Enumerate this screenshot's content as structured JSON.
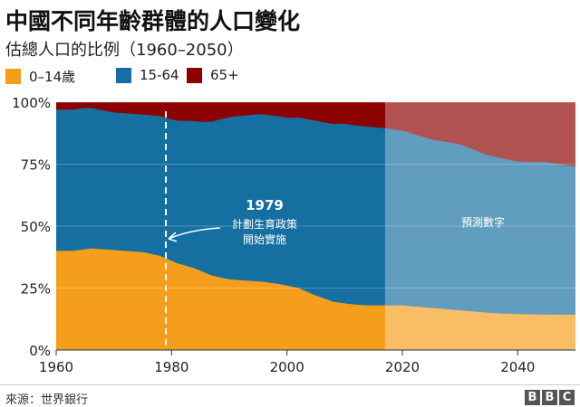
{
  "title": "中國不同年齡群體的人口變化",
  "subtitle": "估總人口的比例（1960–2050）",
  "legend": [
    {
      "label": "0–14歲",
      "color": "#f59e1c"
    },
    {
      "label": "15-64",
      "color": "#156fa0"
    },
    {
      "label": "65+",
      "color": "#8c0000"
    }
  ],
  "source": "來源：世界銀行",
  "logo": [
    "B",
    "B",
    "C"
  ],
  "chart_data": {
    "type": "area",
    "stacked": true,
    "title": "中國不同年齡群體的人口變化",
    "subtitle": "估總人口的比例（1960–2050）",
    "xlim": [
      1960,
      2050
    ],
    "ylim": [
      0,
      100
    ],
    "x_ticks": [
      "1960",
      "1980",
      "2000",
      "2020",
      "2040"
    ],
    "y_ticks": [
      "0%",
      "25%",
      "50%",
      "75%",
      "100%"
    ],
    "grid": true,
    "legend_position": "top-left",
    "series": [
      {
        "name": "0–14歲",
        "color": "#f59e1c",
        "x": [
          1960,
          1963,
          1966,
          1969,
          1972,
          1975,
          1978,
          1981,
          1984,
          1987,
          1990,
          1993,
          1996,
          1999,
          2002,
          2005,
          2008,
          2011,
          2014,
          2017,
          2020,
          2025,
          2030,
          2035,
          2040,
          2045,
          2050
        ],
        "values": [
          40,
          40,
          41,
          40.5,
          40,
          39.5,
          38,
          35,
          33,
          30,
          28.5,
          28,
          27.5,
          26.5,
          25,
          22,
          19.5,
          18.5,
          18,
          18,
          18,
          17,
          16,
          15,
          14.5,
          14.3,
          14.3
        ]
      },
      {
        "name": "15-64",
        "color": "#156fa0",
        "x": [
          1960,
          1965,
          1970,
          1975,
          1980,
          1985,
          1990,
          1995,
          2000,
          2005,
          2010,
          2015,
          2017,
          2020,
          2025,
          2030,
          2035,
          2040,
          2045,
          2050
        ],
        "values": [
          57,
          57,
          55.5,
          55.5,
          57,
          60,
          65.5,
          67.5,
          67.7,
          70.5,
          72.5,
          72,
          71.5,
          70.5,
          68,
          67,
          63.5,
          61.5,
          61.5,
          59.7
        ]
      },
      {
        "name": "65+",
        "color": "#8c0000",
        "x": [
          1960,
          1965,
          1970,
          1975,
          1980,
          1985,
          1990,
          1995,
          2000,
          2005,
          2010,
          2015,
          2017,
          2020,
          2025,
          2030,
          2035,
          2040,
          2045,
          2050
        ],
        "values": [
          3,
          3.5,
          4,
          4.5,
          4.8,
          5.2,
          5.5,
          6,
          7,
          7.5,
          8.5,
          10,
          10.5,
          11.5,
          14.5,
          17,
          21.5,
          24,
          24.2,
          26
        ]
      }
    ],
    "annotations": [
      {
        "x": 1979,
        "label": "1979",
        "text_lines": [
          "計劃生育政策",
          "開始實施"
        ]
      },
      {
        "label": "預測數字",
        "x_start": 2017,
        "x_end": 2050
      }
    ]
  }
}
